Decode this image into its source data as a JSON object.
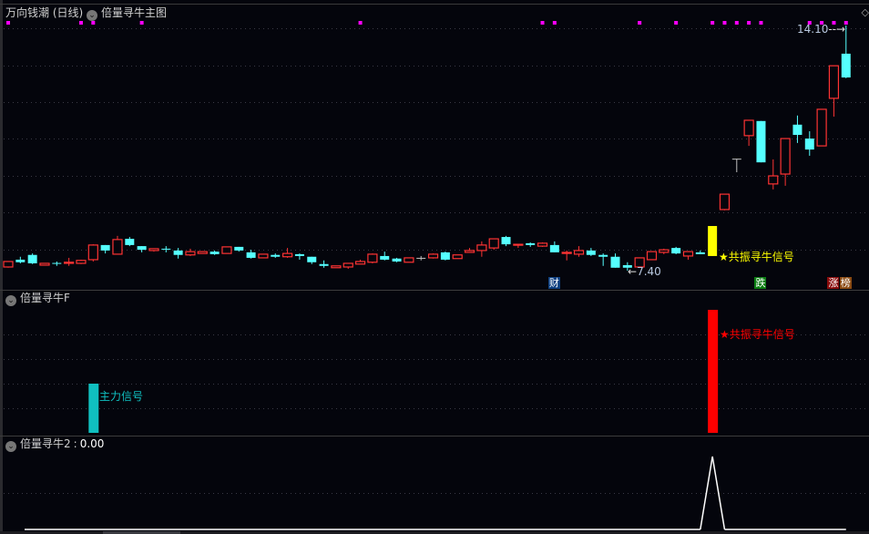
{
  "main_panel": {
    "stock_name": "万向钱潮",
    "period": "(日线)",
    "indicator_name": "倍量寻牛主图",
    "high_label": "14.10",
    "low_label": "7.40",
    "signal_label": "★共振寻牛信号",
    "tags": [
      {
        "text": "财",
        "candle": 45,
        "color": "#0d3f80"
      },
      {
        "text": "跌",
        "candle": 62,
        "color": "#0b7d12"
      },
      {
        "text": "涨",
        "candle": 68,
        "color": "#8a0c0c"
      },
      {
        "text": "榜",
        "candle": 69,
        "color": "#8a4a12"
      }
    ],
    "marker_candles": [
      0,
      6,
      7,
      11,
      29,
      44,
      45,
      52,
      55,
      58,
      59,
      60,
      61,
      62,
      66,
      67,
      68,
      69
    ],
    "colors": {
      "up": "#ff3333",
      "down": "#55ffff",
      "flat": "#c0c0c0",
      "signal": "#ffff00",
      "marker": "#ff00ff"
    }
  },
  "chart_data": [
    {
      "type": "candlestick",
      "ylim": [
        7.4,
        14.1
      ],
      "ohlc": [
        [
          7.5,
          7.65,
          7.48,
          7.65
        ],
        [
          7.7,
          7.78,
          7.6,
          7.63
        ],
        [
          7.83,
          7.87,
          7.58,
          7.6
        ],
        [
          7.55,
          7.6,
          7.55,
          7.6
        ],
        [
          7.61,
          7.65,
          7.53,
          7.6
        ],
        [
          7.6,
          7.75,
          7.53,
          7.63
        ],
        [
          7.6,
          7.7,
          7.58,
          7.68
        ],
        [
          7.7,
          8.12,
          7.65,
          8.1
        ],
        [
          8.1,
          8.1,
          7.87,
          7.95
        ],
        [
          7.85,
          8.35,
          7.85,
          8.25
        ],
        [
          8.27,
          8.32,
          8.07,
          8.1
        ],
        [
          8.07,
          8.07,
          7.9,
          7.97
        ],
        [
          7.95,
          8.0,
          7.92,
          8.0
        ],
        [
          8.0,
          8.07,
          7.9,
          7.99
        ],
        [
          7.95,
          8.02,
          7.73,
          7.83
        ],
        [
          7.83,
          8.0,
          7.8,
          7.92
        ],
        [
          7.87,
          7.92,
          7.87,
          7.92
        ],
        [
          7.92,
          7.95,
          7.83,
          7.85
        ],
        [
          7.87,
          8.05,
          7.87,
          8.05
        ],
        [
          8.05,
          8.05,
          7.92,
          7.95
        ],
        [
          7.9,
          7.97,
          7.73,
          7.75
        ],
        [
          7.75,
          7.85,
          7.75,
          7.85
        ],
        [
          7.83,
          7.87,
          7.75,
          7.78
        ],
        [
          7.78,
          8.02,
          7.75,
          7.87
        ],
        [
          7.85,
          7.87,
          7.7,
          7.8
        ],
        [
          7.78,
          7.78,
          7.58,
          7.63
        ],
        [
          7.58,
          7.68,
          7.48,
          7.53
        ],
        [
          7.48,
          7.53,
          7.48,
          7.53
        ],
        [
          7.5,
          7.6,
          7.45,
          7.6
        ],
        [
          7.58,
          7.7,
          7.58,
          7.65
        ],
        [
          7.63,
          7.87,
          7.6,
          7.85
        ],
        [
          7.8,
          7.92,
          7.68,
          7.7
        ],
        [
          7.73,
          7.75,
          7.63,
          7.65
        ],
        [
          7.63,
          7.75,
          7.63,
          7.75
        ],
        [
          7.75,
          7.8,
          7.68,
          7.75
        ],
        [
          7.75,
          7.87,
          7.73,
          7.85
        ],
        [
          7.9,
          7.92,
          7.68,
          7.7
        ],
        [
          7.73,
          7.83,
          7.73,
          7.83
        ],
        [
          7.9,
          8.02,
          7.9,
          7.95
        ],
        [
          7.95,
          8.2,
          7.78,
          8.1
        ],
        [
          8.02,
          8.27,
          7.97,
          8.27
        ],
        [
          8.32,
          8.35,
          8.07,
          8.12
        ],
        [
          8.1,
          8.12,
          8.02,
          8.12
        ],
        [
          8.15,
          8.17,
          8.05,
          8.1
        ],
        [
          8.07,
          8.17,
          8.05,
          8.15
        ],
        [
          8.1,
          8.2,
          7.9,
          7.9
        ],
        [
          7.87,
          7.95,
          7.68,
          7.9
        ],
        [
          7.85,
          8.07,
          7.78,
          7.95
        ],
        [
          7.95,
          8.02,
          7.8,
          7.83
        ],
        [
          7.83,
          7.87,
          7.53,
          7.78
        ],
        [
          7.78,
          7.87,
          7.48,
          7.48
        ],
        [
          7.55,
          7.63,
          7.4,
          7.48
        ],
        [
          7.5,
          7.75,
          7.5,
          7.75
        ],
        [
          7.7,
          7.92,
          7.7,
          7.92
        ],
        [
          7.9,
          8.0,
          7.85,
          7.97
        ],
        [
          8.02,
          8.05,
          7.85,
          7.87
        ],
        [
          7.8,
          7.92,
          7.7,
          7.92
        ],
        [
          7.9,
          7.95,
          7.85,
          7.85
        ],
        [
          7.8,
          8.62,
          7.8,
          8.62
        ],
        [
          9.07,
          9.49,
          9.05,
          9.49
        ],
        [
          10.46,
          10.46,
          10.09,
          10.46
        ],
        [
          11.09,
          11.51,
          10.81,
          11.51
        ],
        [
          11.49,
          11.49,
          10.36,
          10.36
        ],
        [
          9.77,
          10.44,
          9.62,
          9.99
        ],
        [
          10.04,
          11.01,
          9.72,
          11.01
        ],
        [
          11.39,
          11.64,
          10.89,
          11.11
        ],
        [
          11.01,
          11.21,
          10.54,
          10.71
        ],
        [
          10.81,
          11.81,
          10.81,
          11.81
        ],
        [
          12.11,
          13.0,
          11.61,
          13.0
        ],
        [
          13.33,
          14.1,
          12.66,
          12.68
        ]
      ],
      "signal_candle": 58
    },
    {
      "type": "bar",
      "title": "倍量寻牛F",
      "ylim": [
        0,
        5
      ],
      "bars": [
        {
          "candle": 7,
          "value": 2,
          "color": "#10c0c0",
          "label": "主力信号"
        },
        {
          "candle": 58,
          "value": 5,
          "color": "#ff0000",
          "label": "★共振寻牛信号"
        }
      ]
    },
    {
      "type": "line",
      "title": "倍量寻牛2",
      "current_value": "0.00",
      "ylim": [
        0,
        2
      ],
      "points": [
        {
          "candle": 57,
          "value": 0
        },
        {
          "candle": 58,
          "value": 2
        },
        {
          "candle": 59,
          "value": 0
        }
      ],
      "baseline": 0,
      "color": "#ffffff"
    }
  ],
  "sub_panel_2": {
    "separator": ":"
  }
}
